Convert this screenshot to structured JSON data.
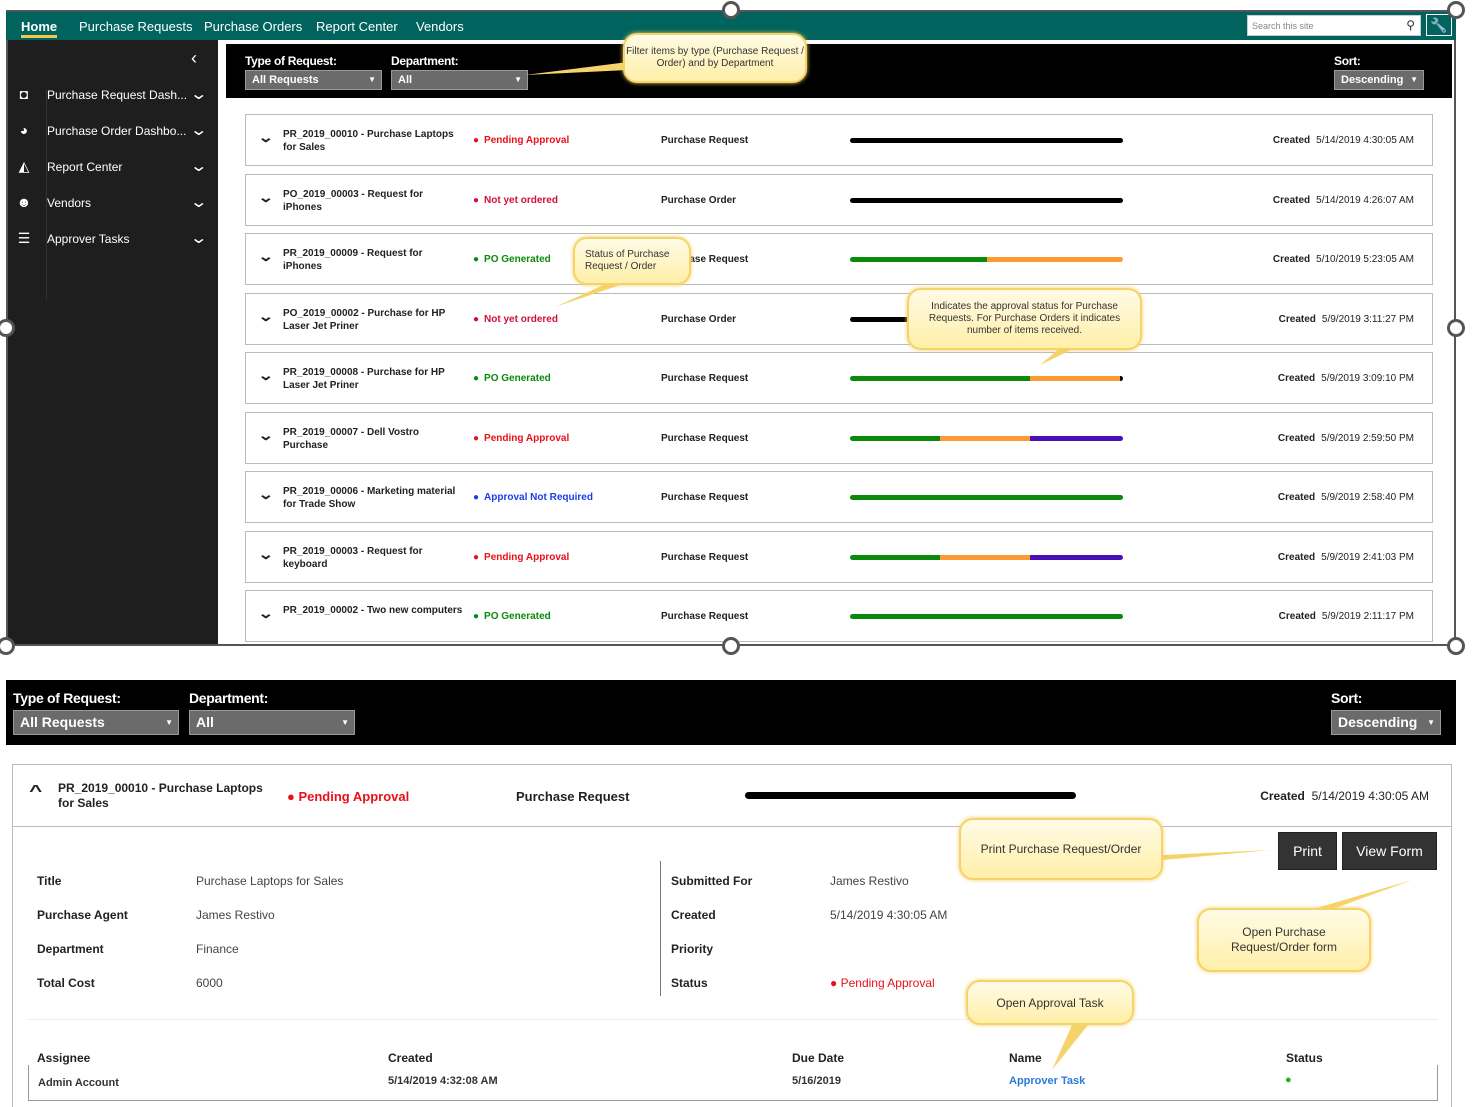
{
  "nav": {
    "items": [
      "Home",
      "Purchase Requests",
      "Purchase Orders",
      "Report Center",
      "Vendors"
    ],
    "search_placeholder": "Search this site"
  },
  "sidebar": {
    "items": [
      {
        "label": "Purchase Request Dash...",
        "icon": "tablet-icon"
      },
      {
        "label": "Purchase Order Dashbo...",
        "icon": "dashboard-icon"
      },
      {
        "label": "Report Center",
        "icon": "chart-icon"
      },
      {
        "label": "Vendors",
        "icon": "users-icon"
      },
      {
        "label": "Approver Tasks",
        "icon": "tasks-icon"
      }
    ]
  },
  "filters": {
    "type_label": "Type of Request:",
    "type_value": "All Requests",
    "dept_label": "Department:",
    "dept_value": "All",
    "sort_label": "Sort:",
    "sort_value": "Descending"
  },
  "colors": {
    "teal": "#00635d",
    "red": "#e8101a",
    "green": "#0a8a0a",
    "blue": "#1a3ee8",
    "orange": "#ff9933",
    "purple": "#4b0fb8",
    "bar_green": "#0a8a0a",
    "black": "#000000"
  },
  "created_label": "Created",
  "rows": [
    {
      "id": "PR_2019_00010",
      "title": "Purchase Laptops for Sales",
      "status": "Pending Approval",
      "status_color": "#e8101a",
      "type": "Purchase Request",
      "progress": [
        [
          "#000000",
          1
        ]
      ],
      "created": "5/14/2019 4:30:05 AM"
    },
    {
      "id": "PO_2019_00003",
      "title": "Request for iPhones",
      "status": "Not yet ordered",
      "status_color": "#d0103a",
      "type": "Purchase Order",
      "progress": [
        [
          "#000000",
          1
        ]
      ],
      "created": "5/14/2019 4:26:07 AM"
    },
    {
      "id": "PR_2019_00009",
      "title": "Request for iPhones",
      "status": "PO Generated",
      "status_color": "#0a8a0a",
      "type": "Purchase Request",
      "progress": [
        [
          "#0a8a0a",
          0.5
        ],
        [
          "#ff9933",
          0.5
        ]
      ],
      "created": "5/10/2019 5:23:05 AM"
    },
    {
      "id": "PO_2019_00002",
      "title": "Purchase for HP Laser Jet Priner",
      "status": "Not yet ordered",
      "status_color": "#d0103a",
      "type": "Purchase Order",
      "progress": [
        [
          "#000000",
          1
        ]
      ],
      "created": "5/9/2019 3:11:27 PM"
    },
    {
      "id": "PR_2019_00008",
      "title": "Purchase for HP Laser Jet Priner",
      "status": "PO Generated",
      "status_color": "#0a8a0a",
      "type": "Purchase Request",
      "progress": [
        [
          "#0a8a0a",
          0.66
        ],
        [
          "#ff9933",
          0.33
        ],
        [
          "#000000",
          0.01
        ]
      ],
      "created": "5/9/2019 3:09:10 PM"
    },
    {
      "id": "PR_2019_00007",
      "title": "Dell Vostro Purchase",
      "status": "Pending Approval",
      "status_color": "#e8101a",
      "type": "Purchase Request",
      "progress": [
        [
          "#0a8a0a",
          0.33
        ],
        [
          "#ff9933",
          0.33
        ],
        [
          "#4b0fb8",
          0.34
        ]
      ],
      "created": "5/9/2019 2:59:50 PM"
    },
    {
      "id": "PR_2019_00006",
      "title": "Marketing material for Trade Show",
      "status": "Approval Not Required",
      "status_color": "#1a3ee8",
      "type": "Purchase Request",
      "progress": [
        [
          "#0a8a0a",
          1
        ]
      ],
      "created": "5/9/2019 2:58:40 PM"
    },
    {
      "id": "PR_2019_00003",
      "title": "Request for keyboard",
      "status": "Pending Approval",
      "status_color": "#e8101a",
      "type": "Purchase Request",
      "progress": [
        [
          "#0a8a0a",
          0.33
        ],
        [
          "#ff9933",
          0.33
        ],
        [
          "#4b0fb8",
          0.34
        ]
      ],
      "created": "5/9/2019 2:41:03 PM"
    },
    {
      "id": "PR_2019_00002",
      "title": "Two new computers",
      "status": "PO Generated",
      "status_color": "#0a8a0a",
      "type": "Purchase Request",
      "progress": [
        [
          "#0a8a0a",
          1
        ]
      ],
      "created": "5/9/2019 2:11:17 PM"
    }
  ],
  "callouts": {
    "filter": "Filter items by type (Purchase Request / Order) and by Department",
    "status": "Status of Purchase Request / Order",
    "progress": "Indicates the approval status for Purchase Requests. For Purchase Orders it indicates number of items received.",
    "print": "Print Purchase Request/Order",
    "open_form": "Open Purchase Request/Order form",
    "approval": "Open Approval Task"
  },
  "detail": {
    "id": "PR_2019_00010",
    "title": "Purchase Laptops for Sales",
    "status": "Pending Approval",
    "type": "Purchase Request",
    "created": "5/14/2019 4:30:05 AM",
    "print": "Print",
    "view_form": "View Form",
    "fields_left": [
      [
        "Title",
        "Purchase Laptops for Sales"
      ],
      [
        "Purchase Agent",
        "James Restivo"
      ],
      [
        "Department",
        "Finance"
      ],
      [
        "Total Cost",
        "6000"
      ]
    ],
    "fields_right": [
      [
        "Submitted For",
        "James Restivo"
      ],
      [
        "Created",
        "5/14/2019 4:30:05 AM"
      ],
      [
        "Priority",
        ""
      ],
      [
        "Status",
        "Pending Approval"
      ]
    ],
    "task_headers": [
      "Assignee",
      "Created",
      "Due Date",
      "Name",
      "Status"
    ],
    "task": {
      "assignee": "Admin Account",
      "created": "5/14/2019 4:32:08 AM",
      "due": "5/16/2019",
      "name": "Approver Task"
    }
  }
}
